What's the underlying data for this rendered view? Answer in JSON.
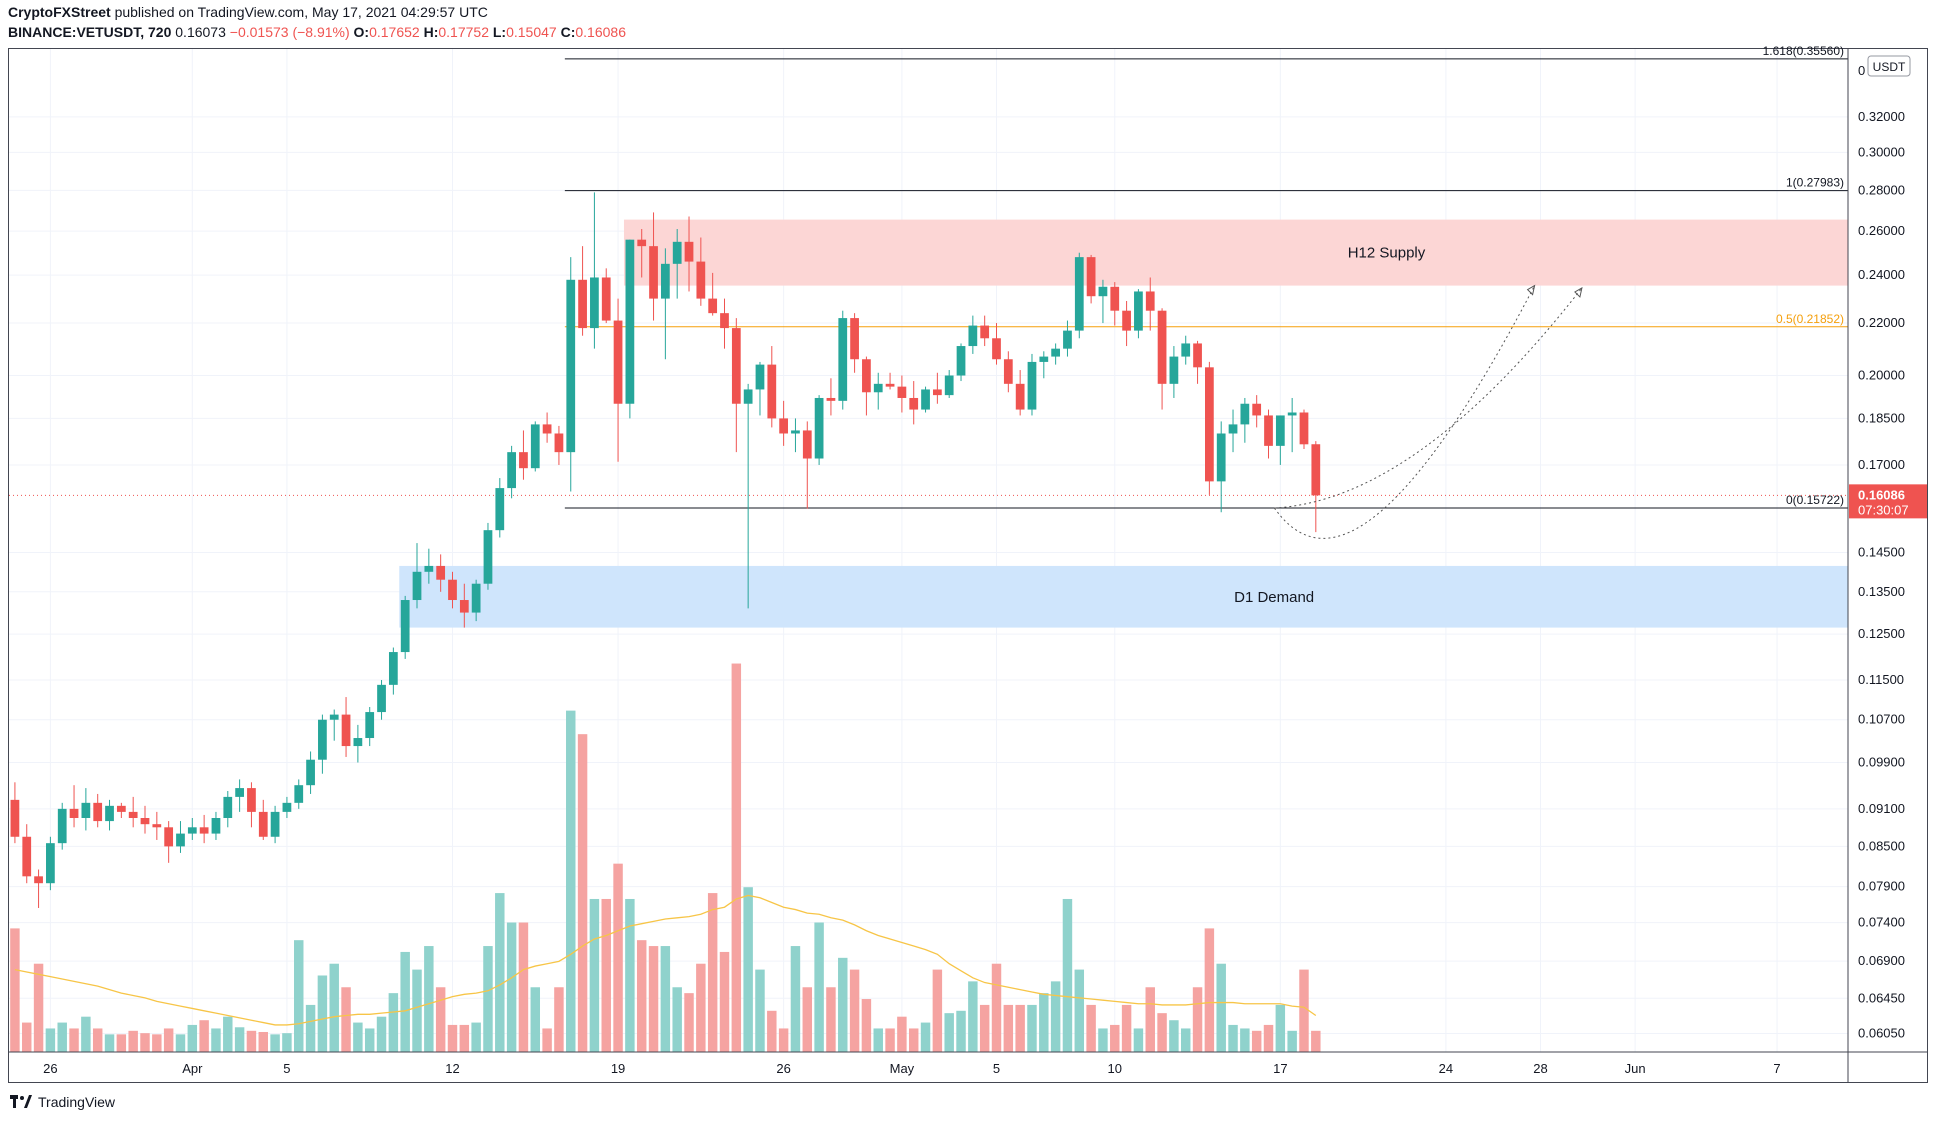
{
  "header": {
    "publisher": "CryptoFXStreet",
    "published_text": " published on TradingView.com, May 17, 2021 04:29:57 UTC",
    "symbol": "BINANCE:VETUSDT, 720",
    "last": "0.16073",
    "change": "−0.01573 (−8.91%)",
    "o_label": "O:",
    "o": "0.17652",
    "h_label": "H:",
    "h": "0.17752",
    "l_label": "L:",
    "l": "0.15047",
    "c_label": "C:",
    "c": "0.16086"
  },
  "footer": {
    "brand": "TradingView"
  },
  "colors": {
    "up": "#26a69a",
    "down": "#ef5350",
    "up_vol": "#8fd2cc",
    "down_vol": "#f5a3a1",
    "supply_zone": "#fcd6d5",
    "demand_zone": "#cfe5fc",
    "fib_half": "#f59f0b",
    "vol_ma": "#f7c547"
  },
  "chart_data": {
    "type": "candlestick",
    "symbol": "VETUSDT",
    "timeframe": "720",
    "currency": "USDT",
    "y_scale": "log",
    "ylim": [
      0.0585,
      0.362
    ],
    "y_ticks": [
      "0.32000",
      "0.30000",
      "0.28000",
      "0.26000",
      "0.24000",
      "0.22000",
      "0.20000",
      "0.18500",
      "0.17000",
      "0.14500",
      "0.13500",
      "0.12500",
      "0.11500",
      "0.10700",
      "0.09900",
      "0.09100",
      "0.08500",
      "0.07900",
      "0.07400",
      "0.06900",
      "0.06450",
      "0.06050"
    ],
    "x_ticks": [
      {
        "label": "26",
        "bar": 3
      },
      {
        "label": "Apr",
        "bar": 15
      },
      {
        "label": "5",
        "bar": 23
      },
      {
        "label": "12",
        "bar": 37
      },
      {
        "label": "19",
        "bar": 51
      },
      {
        "label": "26",
        "bar": 65
      },
      {
        "label": "May",
        "bar": 75
      },
      {
        "label": "5",
        "bar": 83
      },
      {
        "label": "10",
        "bar": 93
      },
      {
        "label": "17",
        "bar": 107
      },
      {
        "label": "24",
        "bar": 121
      },
      {
        "label": "28",
        "bar": 129
      },
      {
        "label": "Jun",
        "bar": 137
      },
      {
        "label": "7",
        "bar": 149
      }
    ],
    "bar_span": [
      -0.5,
      155
    ],
    "candles": [
      [
        0.0925,
        0.0955,
        0.0855,
        0.0865
      ],
      [
        0.0865,
        0.0885,
        0.0795,
        0.0805
      ],
      [
        0.0805,
        0.0815,
        0.076,
        0.0795
      ],
      [
        0.0795,
        0.0865,
        0.0785,
        0.0855
      ],
      [
        0.0855,
        0.092,
        0.0845,
        0.091
      ],
      [
        0.091,
        0.095,
        0.088,
        0.0895
      ],
      [
        0.0895,
        0.0945,
        0.0875,
        0.092
      ],
      [
        0.092,
        0.0935,
        0.088,
        0.089
      ],
      [
        0.089,
        0.0925,
        0.0875,
        0.0915
      ],
      [
        0.0915,
        0.092,
        0.0895,
        0.0905
      ],
      [
        0.0905,
        0.093,
        0.088,
        0.0895
      ],
      [
        0.0895,
        0.0915,
        0.087,
        0.0885
      ],
      [
        0.0885,
        0.0905,
        0.086,
        0.088
      ],
      [
        0.088,
        0.089,
        0.0825,
        0.085
      ],
      [
        0.085,
        0.089,
        0.084,
        0.087
      ],
      [
        0.087,
        0.0895,
        0.086,
        0.088
      ],
      [
        0.088,
        0.09,
        0.0855,
        0.087
      ],
      [
        0.087,
        0.0905,
        0.086,
        0.0895
      ],
      [
        0.0895,
        0.094,
        0.088,
        0.093
      ],
      [
        0.093,
        0.096,
        0.0905,
        0.0945
      ],
      [
        0.0945,
        0.0955,
        0.088,
        0.0905
      ],
      [
        0.0905,
        0.0925,
        0.086,
        0.0865
      ],
      [
        0.0865,
        0.0915,
        0.0855,
        0.0905
      ],
      [
        0.0905,
        0.093,
        0.0895,
        0.092
      ],
      [
        0.092,
        0.096,
        0.091,
        0.095
      ],
      [
        0.095,
        0.101,
        0.0935,
        0.0995
      ],
      [
        0.0995,
        0.108,
        0.097,
        0.107
      ],
      [
        0.107,
        0.109,
        0.103,
        0.108
      ],
      [
        0.108,
        0.1115,
        0.1,
        0.102
      ],
      [
        0.102,
        0.106,
        0.099,
        0.1035
      ],
      [
        0.1035,
        0.1095,
        0.102,
        0.1085
      ],
      [
        0.1085,
        0.115,
        0.107,
        0.114
      ],
      [
        0.114,
        0.122,
        0.112,
        0.121
      ],
      [
        0.121,
        0.134,
        0.1195,
        0.133
      ],
      [
        0.133,
        0.1475,
        0.131,
        0.14
      ],
      [
        0.14,
        0.146,
        0.137,
        0.1415
      ],
      [
        0.1415,
        0.1445,
        0.135,
        0.138
      ],
      [
        0.138,
        0.14,
        0.131,
        0.133
      ],
      [
        0.133,
        0.137,
        0.1265,
        0.13
      ],
      [
        0.13,
        0.138,
        0.128,
        0.137
      ],
      [
        0.137,
        0.153,
        0.1355,
        0.151
      ],
      [
        0.151,
        0.166,
        0.149,
        0.163
      ],
      [
        0.163,
        0.176,
        0.16,
        0.174
      ],
      [
        0.174,
        0.181,
        0.1655,
        0.169
      ],
      [
        0.169,
        0.184,
        0.168,
        0.183
      ],
      [
        0.183,
        0.187,
        0.177,
        0.18
      ],
      [
        0.18,
        0.1825,
        0.17,
        0.174
      ],
      [
        0.174,
        0.248,
        0.162,
        0.238
      ],
      [
        0.238,
        0.253,
        0.215,
        0.218
      ],
      [
        0.218,
        0.279,
        0.21,
        0.239
      ],
      [
        0.239,
        0.243,
        0.22,
        0.221
      ],
      [
        0.221,
        0.23,
        0.171,
        0.19
      ],
      [
        0.19,
        0.256,
        0.185,
        0.256
      ],
      [
        0.256,
        0.261,
        0.239,
        0.253
      ],
      [
        0.253,
        0.269,
        0.221,
        0.23
      ],
      [
        0.23,
        0.252,
        0.206,
        0.245
      ],
      [
        0.245,
        0.261,
        0.23,
        0.255
      ],
      [
        0.255,
        0.267,
        0.233,
        0.246
      ],
      [
        0.246,
        0.257,
        0.227,
        0.23
      ],
      [
        0.23,
        0.241,
        0.223,
        0.224
      ],
      [
        0.224,
        0.23,
        0.21,
        0.218
      ],
      [
        0.218,
        0.222,
        0.174,
        0.19
      ],
      [
        0.19,
        0.197,
        0.131,
        0.195
      ],
      [
        0.195,
        0.205,
        0.186,
        0.204
      ],
      [
        0.204,
        0.211,
        0.182,
        0.185
      ],
      [
        0.185,
        0.191,
        0.176,
        0.18
      ],
      [
        0.18,
        0.185,
        0.174,
        0.181
      ],
      [
        0.181,
        0.184,
        0.157,
        0.172
      ],
      [
        0.172,
        0.193,
        0.17,
        0.192
      ],
      [
        0.192,
        0.199,
        0.186,
        0.191
      ],
      [
        0.191,
        0.225,
        0.188,
        0.222
      ],
      [
        0.222,
        0.224,
        0.201,
        0.206
      ],
      [
        0.206,
        0.207,
        0.186,
        0.194
      ],
      [
        0.194,
        0.201,
        0.188,
        0.197
      ],
      [
        0.197,
        0.201,
        0.195,
        0.196
      ],
      [
        0.196,
        0.2,
        0.187,
        0.192
      ],
      [
        0.192,
        0.198,
        0.183,
        0.188
      ],
      [
        0.188,
        0.196,
        0.187,
        0.195
      ],
      [
        0.195,
        0.201,
        0.19,
        0.193
      ],
      [
        0.193,
        0.202,
        0.192,
        0.2
      ],
      [
        0.2,
        0.212,
        0.198,
        0.211
      ],
      [
        0.211,
        0.223,
        0.208,
        0.219
      ],
      [
        0.219,
        0.223,
        0.211,
        0.214
      ],
      [
        0.214,
        0.22,
        0.204,
        0.206
      ],
      [
        0.206,
        0.209,
        0.194,
        0.197
      ],
      [
        0.197,
        0.202,
        0.186,
        0.188
      ],
      [
        0.188,
        0.208,
        0.186,
        0.205
      ],
      [
        0.205,
        0.209,
        0.199,
        0.207
      ],
      [
        0.207,
        0.212,
        0.204,
        0.21
      ],
      [
        0.21,
        0.221,
        0.207,
        0.217
      ],
      [
        0.217,
        0.25,
        0.214,
        0.248
      ],
      [
        0.248,
        0.249,
        0.228,
        0.231
      ],
      [
        0.231,
        0.238,
        0.22,
        0.235
      ],
      [
        0.235,
        0.237,
        0.219,
        0.225
      ],
      [
        0.225,
        0.229,
        0.211,
        0.217
      ],
      [
        0.217,
        0.234,
        0.214,
        0.233
      ],
      [
        0.233,
        0.239,
        0.217,
        0.225
      ],
      [
        0.225,
        0.226,
        0.188,
        0.197
      ],
      [
        0.197,
        0.211,
        0.192,
        0.207
      ],
      [
        0.207,
        0.215,
        0.204,
        0.212
      ],
      [
        0.212,
        0.213,
        0.197,
        0.203
      ],
      [
        0.203,
        0.205,
        0.161,
        0.165
      ],
      [
        0.165,
        0.184,
        0.156,
        0.18
      ],
      [
        0.18,
        0.188,
        0.174,
        0.183
      ],
      [
        0.183,
        0.192,
        0.177,
        0.19
      ],
      [
        0.19,
        0.193,
        0.182,
        0.186
      ],
      [
        0.186,
        0.188,
        0.172,
        0.176
      ],
      [
        0.176,
        0.186,
        0.17,
        0.186
      ],
      [
        0.186,
        0.192,
        0.174,
        0.187
      ],
      [
        0.187,
        0.188,
        0.175,
        0.1765
      ],
      [
        0.17652,
        0.17752,
        0.15047,
        0.16086
      ]
    ],
    "volumes": [
      0.069,
      0.061,
      0.066,
      0.0605,
      0.061,
      0.0605,
      0.0615,
      0.0605,
      0.06,
      0.06,
      0.0603,
      0.0601,
      0.06,
      0.0605,
      0.06,
      0.0608,
      0.0612,
      0.0605,
      0.0615,
      0.0606,
      0.0603,
      0.0602,
      0.06,
      0.0601,
      0.068,
      0.0625,
      0.065,
      0.066,
      0.064,
      0.061,
      0.0605,
      0.0615,
      0.0635,
      0.067,
      0.0655,
      0.0675,
      0.064,
      0.0608,
      0.0608,
      0.061,
      0.0675,
      0.072,
      0.0695,
      0.0695,
      0.064,
      0.0605,
      0.064,
      0.0875,
      0.0855,
      0.0715,
      0.0715,
      0.0745,
      0.0715,
      0.068,
      0.0675,
      0.0675,
      0.064,
      0.0635,
      0.066,
      0.072,
      0.067,
      0.0915,
      0.0725,
      0.0655,
      0.062,
      0.0605,
      0.0675,
      0.064,
      0.0695,
      0.064,
      0.0665,
      0.0655,
      0.063,
      0.0605,
      0.0605,
      0.0615,
      0.0605,
      0.061,
      0.0655,
      0.0618,
      0.062,
      0.0645,
      0.0625,
      0.066,
      0.0625,
      0.0625,
      0.0625,
      0.0635,
      0.0645,
      0.0715,
      0.0655,
      0.0625,
      0.0605,
      0.0608,
      0.0625,
      0.0605,
      0.064,
      0.0618,
      0.0612,
      0.0605,
      0.064,
      0.069,
      0.066,
      0.0608,
      0.0605,
      0.0603,
      0.0608,
      0.0625,
      0.0603,
      0.0655,
      0.0603
    ],
    "volume_ma": [
      0.0655,
      0.0653,
      0.0651,
      0.0649,
      0.0647,
      0.0645,
      0.0643,
      0.0641,
      0.0638,
      0.0635,
      0.0633,
      0.0631,
      0.0628,
      0.0626,
      0.0624,
      0.0622,
      0.062,
      0.0618,
      0.0616,
      0.0614,
      0.0612,
      0.061,
      0.0608,
      0.0608,
      0.0609,
      0.0611,
      0.0613,
      0.0615,
      0.0616,
      0.0617,
      0.0617,
      0.0618,
      0.0619,
      0.062,
      0.0623,
      0.0626,
      0.0629,
      0.0632,
      0.0634,
      0.0635,
      0.0637,
      0.0642,
      0.0648,
      0.0655,
      0.0658,
      0.066,
      0.0662,
      0.0668,
      0.0675,
      0.0681,
      0.0684,
      0.0688,
      0.0692,
      0.0694,
      0.0696,
      0.0698,
      0.0699,
      0.07,
      0.0702,
      0.0706,
      0.0708,
      0.0715,
      0.0718,
      0.0716,
      0.0712,
      0.0708,
      0.0706,
      0.0703,
      0.0702,
      0.0699,
      0.0697,
      0.0693,
      0.0688,
      0.0684,
      0.0681,
      0.0678,
      0.0675,
      0.0672,
      0.0668,
      0.066,
      0.0654,
      0.0648,
      0.0644,
      0.0642,
      0.064,
      0.0638,
      0.0636,
      0.0634,
      0.0633,
      0.0632,
      0.0631,
      0.063,
      0.0629,
      0.0628,
      0.0627,
      0.0626,
      0.0626,
      0.0625,
      0.0625,
      0.0625,
      0.0626,
      0.0627,
      0.0627,
      0.0627,
      0.0626,
      0.0626,
      0.0626,
      0.0626,
      0.0624,
      0.0623,
      0.0616
    ],
    "fib_levels": [
      {
        "label": "1.618(0.35560)",
        "value": 0.3556
      },
      {
        "label": "1(0.27983)",
        "value": 0.27983
      },
      {
        "label": "0.5(0.21852)",
        "value": 0.21852
      },
      {
        "label": "0(0.15722)",
        "value": 0.15722
      }
    ],
    "fib_start_bar": 46.5,
    "zones": [
      {
        "label": "H12 Supply",
        "from": 0.2355,
        "to": 0.2655,
        "start_bar": 51.5
      },
      {
        "label": "D1 Demand",
        "from": 0.1265,
        "to": 0.1415,
        "start_bar": 32.5
      }
    ],
    "projections": [
      {
        "path": [
          [
            106.5,
            0.1572
          ],
          [
            113.5,
            0.1415
          ],
          [
            128.5,
            0.2355
          ]
        ]
      },
      {
        "path": [
          [
            106.5,
            0.1572
          ],
          [
            118.5,
            0.1595
          ],
          [
            132.5,
            0.2345
          ]
        ]
      }
    ],
    "current_price": {
      "value": "0.16086",
      "countdown": "07:30:07"
    },
    "axis_top_label": "0",
    "currency_badge": "USDT"
  }
}
